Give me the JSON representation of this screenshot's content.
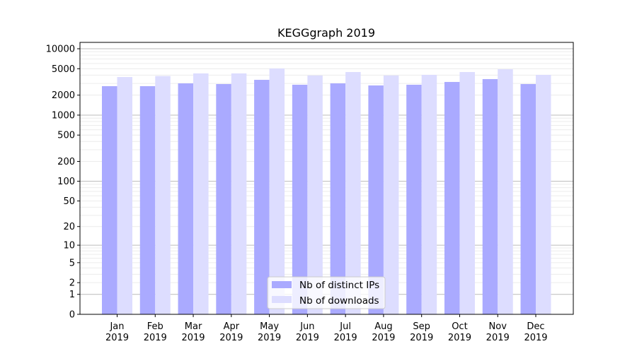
{
  "chart_data": {
    "type": "bar",
    "title": "KEGGgraph 2019",
    "xlabel": "",
    "ylabel": "",
    "yscale": "log10(1+y)",
    "ylim": [
      0,
      10000
    ],
    "yticks": [
      0,
      1,
      2,
      5,
      10,
      20,
      50,
      100,
      200,
      500,
      1000,
      2000,
      5000,
      10000
    ],
    "grid": true,
    "legend_position": "bottom-center",
    "categories": [
      [
        "Jan",
        "2019"
      ],
      [
        "Feb",
        "2019"
      ],
      [
        "Mar",
        "2019"
      ],
      [
        "Apr",
        "2019"
      ],
      [
        "May",
        "2019"
      ],
      [
        "Jun",
        "2019"
      ],
      [
        "Jul",
        "2019"
      ],
      [
        "Aug",
        "2019"
      ],
      [
        "Sep",
        "2019"
      ],
      [
        "Oct",
        "2019"
      ],
      [
        "Nov",
        "2019"
      ],
      [
        "Dec",
        "2019"
      ]
    ],
    "series": [
      {
        "name": "Nb of distinct IPs",
        "color": "#aaaaff",
        "values": [
          2730,
          2730,
          3010,
          2940,
          3400,
          2870,
          3010,
          2800,
          2870,
          3160,
          3490,
          2940
        ]
      },
      {
        "name": "Nb of downloads",
        "color": "#ddddff",
        "values": [
          3750,
          3880,
          4250,
          4250,
          5040,
          3950,
          4460,
          3950,
          4040,
          4460,
          4920,
          4040
        ]
      }
    ]
  }
}
